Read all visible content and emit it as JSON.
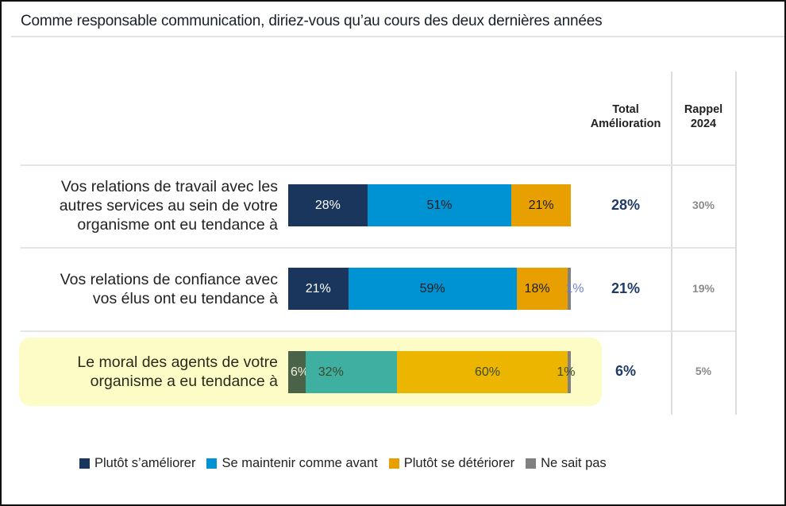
{
  "title": "Comme responsable communication, diriez-vous qu’au cours des deux dernières années",
  "headers": {
    "total": [
      "Total",
      "Amélioration"
    ],
    "rappel": [
      "Rappel",
      "2024"
    ]
  },
  "colors": {
    "ameliorer": "#1b365d",
    "maintenir": "#0093d3",
    "deteriorer": "#e8a000",
    "nsp": "#808080",
    "highlight": "#fdfcc6",
    "highlight_ameliorer": "#4a6348",
    "highlight_maintenir": "#3eafa0",
    "highlight_deteriorer": "#ebb500"
  },
  "legend": [
    {
      "key": "ameliorer",
      "label": "Plutôt s’améliorer"
    },
    {
      "key": "maintenir",
      "label": "Se maintenir comme avant"
    },
    {
      "key": "deteriorer",
      "label": "Plutôt se détériorer"
    },
    {
      "key": "nsp",
      "label": "Ne sait pas"
    }
  ],
  "chart_data": {
    "type": "bar",
    "orientation": "horizontal-stacked-100",
    "title": "Comme responsable communication, diriez-vous qu’au cours des deux dernières années",
    "series_names": [
      "Plutôt s’améliorer",
      "Se maintenir comme avant",
      "Plutôt se détériorer",
      "Ne sait pas"
    ],
    "legend_position": "bottom",
    "categories": [
      {
        "label": [
          "Vos relations de travail avec les",
          "autres services au sein de votre",
          "organisme ont eu tendance à"
        ],
        "values": [
          28,
          51,
          21,
          0
        ],
        "value_labels": [
          "28%",
          "51%",
          "21%",
          ""
        ],
        "total_amelioration": "28%",
        "rappel_2024": "30%",
        "highlighted": false
      },
      {
        "label": [
          "Vos relations de confiance avec",
          "vos élus ont eu tendance à"
        ],
        "values": [
          21,
          59,
          18,
          1
        ],
        "value_labels": [
          "21%",
          "59%",
          "18%",
          "1%"
        ],
        "total_amelioration": "21%",
        "rappel_2024": "19%",
        "highlighted": false
      },
      {
        "label": [
          "Le moral des agents de votre",
          "organisme a eu tendance à"
        ],
        "values": [
          6,
          32,
          60,
          1
        ],
        "value_labels": [
          "6%",
          "32%",
          "60%",
          "1%"
        ],
        "total_amelioration": "6%",
        "rappel_2024": "5%",
        "highlighted": true
      }
    ]
  }
}
